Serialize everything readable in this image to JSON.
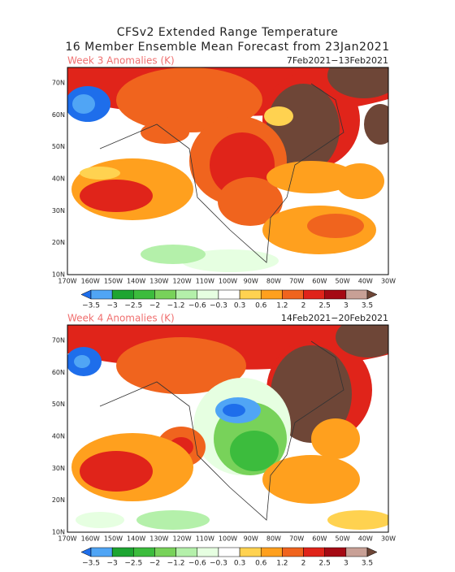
{
  "header": {
    "title": "CFSv2 Extended Range Temperature",
    "subtitle": "16 Member Ensemble Mean Forecast from 23Jan2021"
  },
  "panels": [
    {
      "label": "Week 3 Anomalies (K)",
      "dates": "7Feb2021−13Feb2021"
    },
    {
      "label": "Week 4 Anomalies (K)",
      "dates": "14Feb2021−20Feb2021"
    }
  ],
  "lat_labels": [
    "70N",
    "60N",
    "50N",
    "40N",
    "30N",
    "20N",
    "10N"
  ],
  "lon_labels": [
    "170W",
    "160W",
    "150W",
    "140W",
    "130W",
    "120W",
    "110W",
    "100W",
    "90W",
    "80W",
    "70W",
    "60W",
    "50W",
    "40W",
    "30W"
  ],
  "colorbar_labels": [
    "−3.5",
    "−3",
    "−2.5",
    "−2",
    "−1.2",
    "−0.6",
    "−0.3",
    "0.3",
    "0.6",
    "1.2",
    "2",
    "2.5",
    "3",
    "3.5"
  ]
}
